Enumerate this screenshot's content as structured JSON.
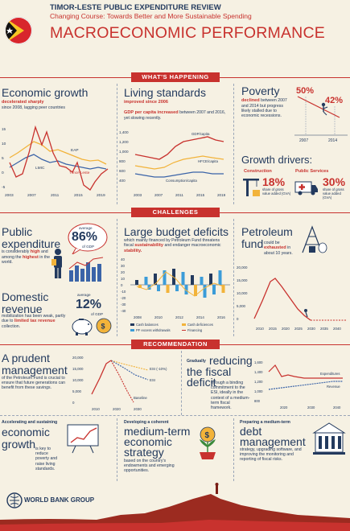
{
  "header": {
    "title": "TIMOR-LESTE PUBLIC EXPENDITURE REVIEW",
    "subtitle": "Changing Course: Towards Better and More Sustainable Spending",
    "section_title": "MACROECONOMIC PERFORMANCE",
    "flag_icon": "timor-leste-flag-icon",
    "colors": {
      "red": "#c8322e",
      "navy": "#233a5e",
      "yellow": "#f2b33a",
      "bg": "#f6f1e3"
    }
  },
  "banners": {
    "happening": "WHAT'S HAPPENING",
    "challenges": "CHALLENGES",
    "recommendation": "RECOMMENDATION"
  },
  "growth": {
    "title": "Economic growth",
    "sub_red": "decelerated sharply",
    "sub": "since 2008, lagging peer countries",
    "labels": {
      "eap": "EAP",
      "lmic": "LMIC",
      "tl": "Timor-Leste"
    },
    "yticks": [
      "15",
      "10",
      "5",
      "0",
      "-5"
    ],
    "xticks": [
      "2003",
      "2007",
      "2011",
      "2015",
      "2019"
    ]
  },
  "living": {
    "title": "Living standards",
    "sub_red": "improved since 2006",
    "desc_red": "GDP per capita increased",
    "desc": "between 2007 and 2016, yet slowing recently.",
    "labels": {
      "gdp": "GDP/capita",
      "hfce": "HFCE/capita",
      "cons": "Consumption/capita"
    },
    "yticks": [
      "1,400",
      "1,200",
      "1,000",
      "800",
      "600",
      "400"
    ],
    "xticks": [
      "2003",
      "2007",
      "2011",
      "2015",
      "2019"
    ]
  },
  "poverty": {
    "title": "Poverty",
    "desc_red": "declined",
    "desc": "between 2007 and 2014 but progress likely stalled due to economic recessions.",
    "v2007": "50%",
    "v2014": "42%",
    "x2007": "2007",
    "x2014": "2014"
  },
  "drivers": {
    "title": "Growth drivers:",
    "construction": {
      "label": "Construction",
      "value": "18%",
      "note": "share of gross value added (GVA)"
    },
    "services": {
      "label": "Public Services",
      "value": "30%",
      "note": "share of gross value added (GVA)"
    }
  },
  "public": {
    "title": "Public expenditure",
    "desc1": "is considerably ",
    "desc_red": "high",
    "desc2": " and among the ",
    "desc_red2": "highest",
    "desc3": " in the world.",
    "avg_label": "average",
    "value": "86%",
    "of_gdp": "of GDP"
  },
  "domestic": {
    "title": "Domestic revenue",
    "desc": "mobilization has been weak, partly due to ",
    "desc_red": "limited tax revenue",
    "desc2": " collection.",
    "avg_label": "average",
    "value": "12%",
    "of_gdp": "of GDP"
  },
  "deficits": {
    "title": "Large budget deficits",
    "desc": "which mainly financed by Petroleum Fund threatens fiscal ",
    "desc_red": "sustainability",
    "desc2": " and endanger macroeconomic ",
    "desc_red2": "stability.",
    "yticks": [
      "40",
      "30",
      "20",
      "10",
      "0",
      "-10",
      "-20",
      "-30",
      "-40"
    ],
    "xticks": [
      "2008",
      "2010",
      "2012",
      "2014",
      "2016"
    ],
    "legend": [
      "Cash balances",
      "PF excess withdrawals",
      "Cash deficiences",
      "Financing"
    ]
  },
  "petro": {
    "title": "Petroleum fund",
    "desc1": "could be ",
    "desc_red": "exhausted",
    "desc2": " in about 10 years.",
    "yticks": [
      "20,000",
      "15,000",
      "10,000",
      "5,000",
      "0"
    ],
    "xticks": [
      "2010",
      "2015",
      "2020",
      "2025",
      "2030",
      "2035",
      "2040"
    ]
  },
  "prudent": {
    "title": "A prudent management",
    "desc": "of the Petroleum Fund is crucial to ensure that future generations can benefit from these savings.",
    "labels": {
      "esi10": "ESI (-10%)",
      "esi": "ESI",
      "baseline": "Baseline"
    },
    "yticks": [
      "20,000",
      "15,000",
      "10,000",
      "5,000",
      "0"
    ],
    "xticks": [
      "2010",
      "2020",
      "2030"
    ]
  },
  "reducing": {
    "pre": "Gradually",
    "title": "reducing the fiscal deficit",
    "desc": "through a binding commitment to the ESI, ideally in the context of a medium-term fiscal framework.",
    "labels": {
      "exp": "Expenditures",
      "rev": "Revenue"
    },
    "yticks": [
      "1,600",
      "1,400",
      "1,200",
      "1,000",
      "800"
    ],
    "xticks": [
      "2020",
      "2030",
      "2040"
    ]
  },
  "econ": {
    "pre": "Accelerating and sustaining",
    "title": "economic growth",
    "desc": "is key to reduce poverty and raise living standards."
  },
  "strategy": {
    "pre": "Developing a coherent",
    "title": "medium-term economic strategy",
    "desc": "based on the country's endowments and emerging opportunities."
  },
  "debt": {
    "pre": "Preparing a medium-term",
    "title": "debt management",
    "desc": "strategy, upgrading software, and improving the monitoring and reporting of fiscal risks."
  },
  "footer": {
    "logo": "WORLD BANK GROUP"
  }
}
